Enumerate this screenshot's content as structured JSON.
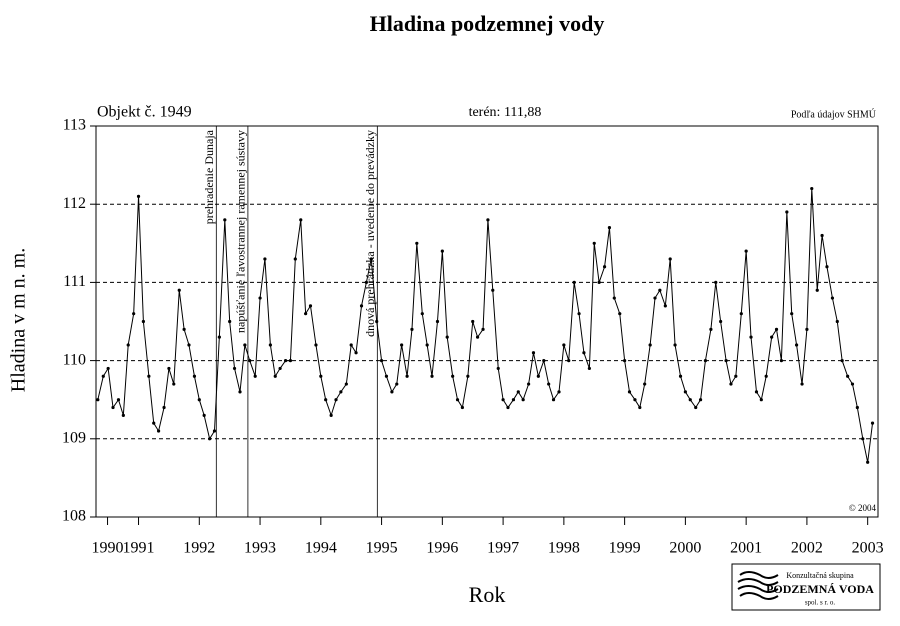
{
  "chart_data": {
    "type": "line",
    "title": "Hladina podzemnej vody",
    "ylabel": "Hladina v m n. m.",
    "xlabel": "Rok",
    "object_label": "Objekt č. 1949",
    "terrain_label": "terén: 111,88",
    "source": "Podľa údajov SHMÚ",
    "copyright": "© 2004",
    "logo": [
      "Konzultačná skupina",
      "PODZEMNÁ VODA",
      "spol. s r. o."
    ],
    "events": [
      {
        "x": 1992.78,
        "text": "prehradenie Dunaja"
      },
      {
        "x": 1993.3,
        "text": "napúšťanie ľavostrannej ramennej sústavy"
      },
      {
        "x": 1995.43,
        "text": "dnová prehrádzka - uvedenie do prevádzky"
      }
    ],
    "xlim": [
      1990.8,
      2003.67
    ],
    "ylim": [
      108,
      113
    ],
    "yticks": [
      108,
      109,
      110,
      111,
      112,
      113
    ],
    "xticks": [
      {
        "value": 1990.99,
        "label": "1990"
      },
      {
        "value": 1991.5,
        "label": "1991"
      },
      {
        "value": 1992.5,
        "label": "1992"
      },
      {
        "value": 1993.5,
        "label": "1993"
      },
      {
        "value": 1994.5,
        "label": "1994"
      },
      {
        "value": 1995.5,
        "label": "1995"
      },
      {
        "value": 1996.5,
        "label": "1996"
      },
      {
        "value": 1997.5,
        "label": "1997"
      },
      {
        "value": 1998.5,
        "label": "1998"
      },
      {
        "value": 1999.5,
        "label": "1999"
      },
      {
        "value": 2000.5,
        "label": "2000"
      },
      {
        "value": 2001.5,
        "label": "2001"
      },
      {
        "value": 2002.5,
        "label": "2002"
      },
      {
        "value": 2003.5,
        "label": "2003"
      }
    ],
    "grid": true,
    "color": "#000000",
    "x": [
      1990.83,
      1990.92,
      1991.0,
      1991.08,
      1991.17,
      1991.25,
      1991.33,
      1991.42,
      1991.5,
      1991.58,
      1991.67,
      1991.75,
      1991.83,
      1991.92,
      1992.0,
      1992.08,
      1992.17,
      1992.25,
      1992.33,
      1992.42,
      1992.5,
      1992.58,
      1992.67,
      1992.75,
      1992.83,
      1992.92,
      1993.0,
      1993.08,
      1993.17,
      1993.25,
      1993.33,
      1993.42,
      1993.5,
      1993.58,
      1993.67,
      1993.75,
      1993.83,
      1993.92,
      1994.0,
      1994.08,
      1994.17,
      1994.25,
      1994.33,
      1994.42,
      1994.5,
      1994.58,
      1994.67,
      1994.75,
      1994.83,
      1994.92,
      1995.0,
      1995.08,
      1995.17,
      1995.25,
      1995.33,
      1995.42,
      1995.5,
      1995.58,
      1995.67,
      1995.75,
      1995.83,
      1995.92,
      1996.0,
      1996.08,
      1996.17,
      1996.25,
      1996.33,
      1996.42,
      1996.5,
      1996.58,
      1996.67,
      1996.75,
      1996.83,
      1996.92,
      1997.0,
      1997.08,
      1997.17,
      1997.25,
      1997.33,
      1997.42,
      1997.5,
      1997.58,
      1997.67,
      1997.75,
      1997.83,
      1997.92,
      1998.0,
      1998.08,
      1998.17,
      1998.25,
      1998.33,
      1998.42,
      1998.5,
      1998.58,
      1998.67,
      1998.75,
      1998.83,
      1998.92,
      1999.0,
      1999.08,
      1999.17,
      1999.25,
      1999.33,
      1999.42,
      1999.5,
      1999.58,
      1999.67,
      1999.75,
      1999.83,
      1999.92,
      2000.0,
      2000.08,
      2000.17,
      2000.25,
      2000.33,
      2000.42,
      2000.5,
      2000.58,
      2000.67,
      2000.75,
      2000.83,
      2000.92,
      2001.0,
      2001.08,
      2001.17,
      2001.25,
      2001.33,
      2001.42,
      2001.5,
      2001.58,
      2001.67,
      2001.75,
      2001.83,
      2001.92,
      2002.0,
      2002.08,
      2002.17,
      2002.25,
      2002.33,
      2002.42,
      2002.5,
      2002.58,
      2002.67,
      2002.75,
      2002.83,
      2002.92,
      2003.0,
      2003.08,
      2003.17,
      2003.25,
      2003.33,
      2003.42,
      2003.5,
      2003.58
    ],
    "values": [
      109.5,
      109.8,
      109.9,
      109.4,
      109.5,
      109.3,
      110.2,
      110.6,
      112.1,
      110.5,
      109.8,
      109.2,
      109.1,
      109.4,
      109.9,
      109.7,
      110.9,
      110.4,
      110.2,
      109.8,
      109.5,
      109.3,
      109.0,
      109.1,
      110.3,
      111.8,
      110.5,
      109.9,
      109.6,
      110.2,
      110.0,
      109.8,
      110.8,
      111.3,
      110.2,
      109.8,
      109.9,
      110.0,
      110.0,
      111.3,
      111.8,
      110.6,
      110.7,
      110.2,
      109.8,
      109.5,
      109.3,
      109.5,
      109.6,
      109.7,
      110.2,
      110.1,
      110.7,
      111.0,
      111.3,
      110.5,
      110.0,
      109.8,
      109.6,
      109.7,
      110.2,
      109.8,
      110.4,
      111.5,
      110.6,
      110.2,
      109.8,
      110.5,
      111.4,
      110.3,
      109.8,
      109.5,
      109.4,
      109.8,
      110.5,
      110.3,
      110.4,
      111.8,
      110.9,
      109.9,
      109.5,
      109.4,
      109.5,
      109.6,
      109.5,
      109.7,
      110.1,
      109.8,
      110.0,
      109.7,
      109.5,
      109.6,
      110.2,
      110.0,
      111.0,
      110.6,
      110.1,
      109.9,
      111.5,
      111.0,
      111.2,
      111.7,
      110.8,
      110.6,
      110.0,
      109.6,
      109.5,
      109.4,
      109.7,
      110.2,
      110.8,
      110.9,
      110.7,
      111.3,
      110.2,
      109.8,
      109.6,
      109.5,
      109.4,
      109.5,
      110.0,
      110.4,
      111.0,
      110.5,
      110.0,
      109.7,
      109.8,
      110.6,
      111.4,
      110.3,
      109.6,
      109.5,
      109.8,
      110.3,
      110.4,
      110.0,
      111.9,
      110.6,
      110.2,
      109.7,
      110.4,
      112.2,
      110.9,
      111.6,
      111.2,
      110.8,
      110.5,
      110.0,
      109.8,
      109.7,
      109.4,
      109.0,
      108.7,
      109.2
    ]
  }
}
